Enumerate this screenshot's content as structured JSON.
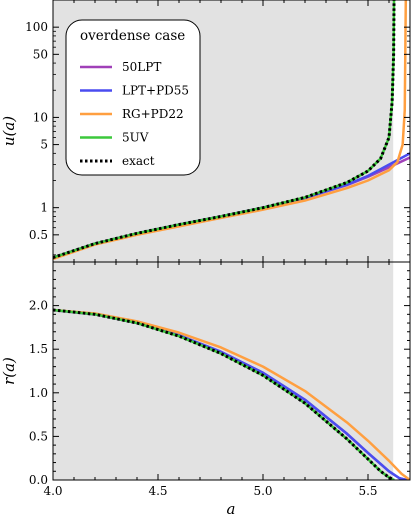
{
  "chart_data": [
    {
      "type": "line",
      "panel": "top",
      "ylabel": "u(a)",
      "yscale": "log",
      "xlim": [
        4.0,
        5.7
      ],
      "ylim": [
        0.25,
        200
      ],
      "yticks": [
        0.5,
        1,
        5,
        10,
        50,
        100
      ],
      "shaded_region": [
        4.0,
        5.62
      ],
      "legend": {
        "title": "overdense case",
        "placement": "top-left",
        "entries": [
          {
            "label": "50LPT",
            "color": "#a040b8",
            "style": "solid"
          },
          {
            "label": "LPT+PD55",
            "color": "#4a4cf0",
            "style": "solid"
          },
          {
            "label": "RG+PD22",
            "color": "#ff9f40",
            "style": "solid"
          },
          {
            "label": "5UV",
            "color": "#3cc83c",
            "style": "solid"
          },
          {
            "label": "exact",
            "color": "#000000",
            "style": "dotted"
          }
        ]
      },
      "series": [
        {
          "name": "50LPT",
          "color": "#a040b8",
          "x": [
            4.0,
            4.2,
            4.4,
            4.6,
            4.8,
            5.0,
            5.2,
            5.4,
            5.5,
            5.6,
            5.7
          ],
          "y": [
            0.28,
            0.4,
            0.52,
            0.65,
            0.8,
            1.0,
            1.28,
            1.78,
            2.2,
            2.8,
            3.6
          ]
        },
        {
          "name": "LPT+PD55",
          "color": "#4a4cf0",
          "x": [
            4.0,
            4.2,
            4.4,
            4.6,
            4.8,
            5.0,
            5.2,
            5.4,
            5.5,
            5.6,
            5.7
          ],
          "y": [
            0.28,
            0.4,
            0.52,
            0.65,
            0.8,
            1.0,
            1.28,
            1.8,
            2.25,
            3.0,
            4.0
          ]
        },
        {
          "name": "RG+PD22",
          "color": "#ff9f40",
          "x": [
            4.0,
            4.2,
            4.4,
            4.6,
            4.8,
            5.0,
            5.2,
            5.4,
            5.5,
            5.6,
            5.64,
            5.665,
            5.675,
            5.68
          ],
          "y": [
            0.27,
            0.39,
            0.5,
            0.62,
            0.77,
            0.95,
            1.2,
            1.65,
            2.0,
            2.6,
            3.2,
            5.0,
            12.0,
            200.0
          ]
        },
        {
          "name": "5UV",
          "color": "#3cc83c",
          "x": [
            4.0,
            4.2,
            4.4,
            4.6,
            4.8,
            5.0,
            5.2,
            5.4,
            5.5,
            5.56,
            5.6,
            5.615,
            5.622,
            5.624
          ],
          "y": [
            0.28,
            0.4,
            0.52,
            0.65,
            0.8,
            1.0,
            1.3,
            1.9,
            2.55,
            3.5,
            6.0,
            15.0,
            50.0,
            200.0
          ]
        },
        {
          "name": "exact",
          "color": "#000000",
          "x": [
            4.0,
            4.2,
            4.4,
            4.6,
            4.8,
            5.0,
            5.2,
            5.4,
            5.5,
            5.56,
            5.6,
            5.615,
            5.622,
            5.624
          ],
          "y": [
            0.28,
            0.4,
            0.52,
            0.65,
            0.8,
            1.0,
            1.3,
            1.9,
            2.55,
            3.5,
            6.0,
            15.0,
            50.0,
            200.0
          ]
        }
      ]
    },
    {
      "type": "line",
      "panel": "bottom",
      "xlabel": "a",
      "ylabel": "r(a)",
      "xlim": [
        4.0,
        5.7
      ],
      "ylim": [
        0.0,
        2.5
      ],
      "xticks": [
        4.0,
        4.5,
        5.0,
        5.5
      ],
      "yticks": [
        0.0,
        0.5,
        1.0,
        1.5,
        2.0
      ],
      "shaded_region": [
        4.0,
        5.62
      ],
      "series": [
        {
          "name": "50LPT",
          "color": "#a040b8",
          "x": [
            4.0,
            4.2,
            4.4,
            4.6,
            4.8,
            5.0,
            5.2,
            5.4,
            5.5,
            5.6,
            5.65,
            5.685
          ],
          "y": [
            1.95,
            1.9,
            1.8,
            1.66,
            1.47,
            1.23,
            0.92,
            0.53,
            0.31,
            0.1,
            0.02,
            0.0
          ]
        },
        {
          "name": "LPT+PD55",
          "color": "#4a4cf0",
          "x": [
            4.0,
            4.2,
            4.4,
            4.6,
            4.8,
            5.0,
            5.2,
            5.4,
            5.5,
            5.6,
            5.65,
            5.682
          ],
          "y": [
            1.95,
            1.9,
            1.8,
            1.66,
            1.47,
            1.23,
            0.92,
            0.53,
            0.31,
            0.1,
            0.02,
            0.0
          ]
        },
        {
          "name": "RG+PD22",
          "color": "#ff9f40",
          "x": [
            4.0,
            4.2,
            4.4,
            4.6,
            4.8,
            5.0,
            5.2,
            5.4,
            5.5,
            5.6,
            5.66,
            5.7
          ],
          "y": [
            1.95,
            1.91,
            1.82,
            1.69,
            1.52,
            1.3,
            1.02,
            0.66,
            0.45,
            0.22,
            0.07,
            0.0
          ]
        },
        {
          "name": "5UV",
          "color": "#3cc83c",
          "x": [
            4.0,
            4.2,
            4.4,
            4.6,
            4.8,
            5.0,
            5.2,
            5.4,
            5.5,
            5.56,
            5.6,
            5.624
          ],
          "y": [
            1.95,
            1.9,
            1.8,
            1.65,
            1.45,
            1.2,
            0.88,
            0.47,
            0.24,
            0.1,
            0.03,
            0.0
          ]
        },
        {
          "name": "exact",
          "color": "#000000",
          "x": [
            4.0,
            4.2,
            4.4,
            4.6,
            4.8,
            5.0,
            5.2,
            5.4,
            5.5,
            5.56,
            5.6,
            5.624
          ],
          "y": [
            1.95,
            1.9,
            1.8,
            1.65,
            1.45,
            1.2,
            0.88,
            0.47,
            0.24,
            0.1,
            0.03,
            0.0
          ]
        }
      ]
    }
  ]
}
